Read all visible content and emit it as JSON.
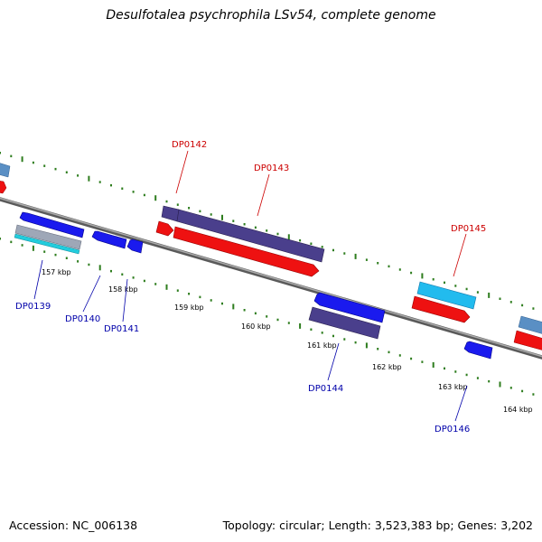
{
  "title": "Desulfotalea psychrophila LSv54, complete genome",
  "footer": {
    "accession": "Accession: NC_006138",
    "topology": "Topology: circular; Length: 3,523,383 bp; Genes: 3,202"
  },
  "colors": {
    "backbone": "#8a8a8a",
    "tick": "#2e7d1e",
    "forward_label": "#cc0000",
    "reverse_label": "#0000aa",
    "red": "#ee1111",
    "blue": "#1a1aee",
    "purple": "#4a3f8c",
    "cyan": "#22aaee",
    "steel": "#5588bb"
  },
  "scale_labels": [
    "157 kbp",
    "158 kbp",
    "159 kbp",
    "160 kbp",
    "161 kbp",
    "162 kbp",
    "163 kbp",
    "164 kbp"
  ],
  "genes": [
    {
      "name": "DP0139",
      "color": "reverse_label"
    },
    {
      "name": "DP0140",
      "color": "reverse_label"
    },
    {
      "name": "DP0141",
      "color": "reverse_label"
    },
    {
      "name": "DP0142",
      "color": "forward_label"
    },
    {
      "name": "DP0143",
      "color": "forward_label"
    },
    {
      "name": "DP0144",
      "color": "reverse_label"
    },
    {
      "name": "DP0145",
      "color": "forward_label"
    },
    {
      "name": "DP0146",
      "color": "reverse_label"
    }
  ]
}
